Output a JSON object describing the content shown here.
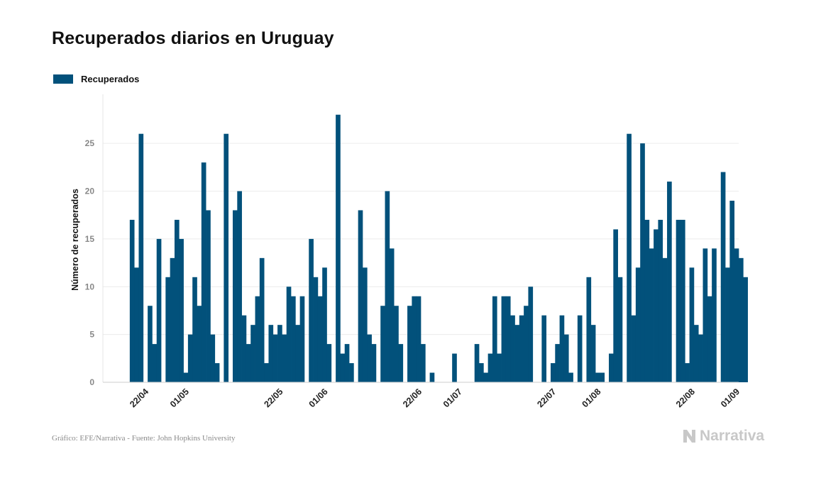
{
  "chart_data": {
    "type": "bar",
    "title": "Recuperados diarios en Uruguay",
    "legend": [
      "Recuperados"
    ],
    "ylabel": "Número de recuperados",
    "xlabel": "",
    "ylim": [
      0,
      28.5
    ],
    "yticks": [
      0,
      5,
      10,
      15,
      20,
      25
    ],
    "grid": true,
    "color": "#02517b",
    "start_date": "2020-04-12",
    "end_date": "2020-09-01",
    "xticks": [
      {
        "label": "22/04",
        "date": "2020-04-22"
      },
      {
        "label": "01/05",
        "date": "2020-05-01"
      },
      {
        "label": "22/05",
        "date": "2020-05-22"
      },
      {
        "label": "01/06",
        "date": "2020-06-01"
      },
      {
        "label": "22/06",
        "date": "2020-06-22"
      },
      {
        "label": "01/07",
        "date": "2020-07-01"
      },
      {
        "label": "22/07",
        "date": "2020-07-22"
      },
      {
        "label": "01/08",
        "date": "2020-08-01"
      },
      {
        "label": "22/08",
        "date": "2020-08-22"
      },
      {
        "label": "01/09",
        "date": "2020-09-01"
      }
    ],
    "series": [
      {
        "name": "Recuperados",
        "first_date": "2020-04-18",
        "values": [
          17,
          12,
          26,
          0,
          8,
          4,
          15,
          0,
          11,
          13,
          17,
          15,
          1,
          5,
          11,
          8,
          23,
          18,
          5,
          2,
          0,
          26,
          0,
          18,
          20,
          7,
          4,
          6,
          9,
          13,
          2,
          6,
          5,
          6,
          5,
          10,
          9,
          6,
          9,
          0,
          15,
          11,
          9,
          12,
          4,
          0,
          28,
          3,
          4,
          2,
          0,
          18,
          12,
          5,
          4,
          0,
          8,
          20,
          14,
          8,
          4,
          0,
          8,
          9,
          9,
          4,
          0,
          1,
          0,
          0,
          0,
          0,
          3,
          0,
          0,
          0,
          0,
          4,
          2,
          1,
          3,
          9,
          3,
          9,
          9,
          7,
          6,
          7,
          8,
          10,
          0,
          0,
          7,
          0,
          2,
          4,
          7,
          5,
          1,
          0,
          7,
          0,
          11,
          6,
          1,
          1,
          0,
          3,
          16,
          11,
          0,
          26,
          7,
          12,
          25,
          17,
          14,
          16,
          17,
          13,
          21,
          0,
          17,
          17,
          2,
          12,
          6,
          5,
          14,
          9,
          14,
          0,
          22,
          12,
          19,
          14,
          13,
          11
        ]
      }
    ]
  },
  "footer": {
    "source": "Gráfico: EFE/Narrativa - Fuente: John Hopkins University",
    "brand": "Narrativa"
  }
}
